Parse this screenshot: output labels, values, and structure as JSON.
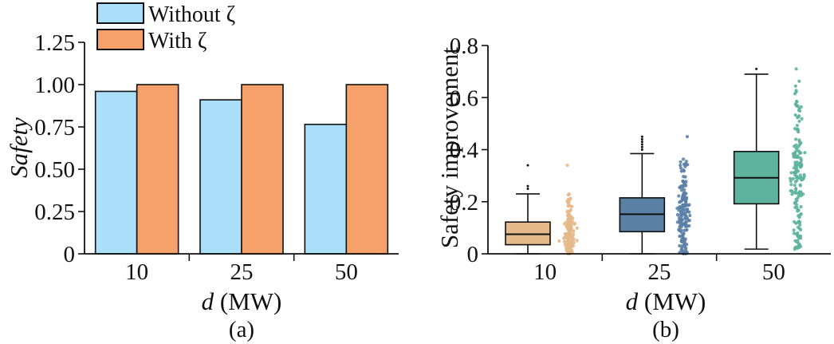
{
  "chart_data": [
    {
      "type": "bar",
      "panel_label": "(a)",
      "categories": [
        "10",
        "25",
        "50"
      ],
      "series": [
        {
          "name": "Without ζ",
          "color": "#aadff9",
          "values": [
            0.96,
            0.91,
            0.765
          ]
        },
        {
          "name": "With ζ",
          "color": "#f7a16a",
          "values": [
            1.0,
            1.0,
            1.0
          ]
        }
      ],
      "title": "",
      "xlabel_var": "d",
      "xlabel_unit": " (MW)",
      "ylabel": "Safety",
      "ylim": [
        0,
        1.25
      ],
      "yticks": [
        "0",
        "0.25",
        "0.50",
        "0.75",
        "1.00",
        "1.25"
      ],
      "legend_position": "top",
      "grid": false
    },
    {
      "type": "box",
      "panel_label": "(b)",
      "categories": [
        "10",
        "25",
        "50"
      ],
      "title": "",
      "xlabel_var": "d",
      "xlabel_unit": " (MW)",
      "ylabel": "Safety improvement",
      "ylim": [
        0,
        0.8
      ],
      "yticks": [
        "0",
        "0.2",
        "0.4",
        "0.6",
        "0.8"
      ],
      "grid": false,
      "boxes": [
        {
          "category": "10",
          "color": "#e6b98a",
          "whisker_low": 0.0,
          "q1": 0.035,
          "median": 0.075,
          "q3": 0.122,
          "whisker_high": 0.23,
          "outliers": [
            0.25,
            0.26,
            0.34
          ]
        },
        {
          "category": "25",
          "color": "#5b80a6",
          "whisker_low": 0.0,
          "q1": 0.085,
          "median": 0.152,
          "q3": 0.215,
          "whisker_high": 0.385,
          "outliers": [
            0.4,
            0.41,
            0.42,
            0.43,
            0.44,
            0.45
          ]
        },
        {
          "category": "50",
          "color": "#5db39d",
          "whisker_low": 0.018,
          "q1": 0.192,
          "median": 0.292,
          "q3": 0.393,
          "whisker_high": 0.69,
          "outliers": [
            0.71
          ]
        }
      ]
    }
  ]
}
